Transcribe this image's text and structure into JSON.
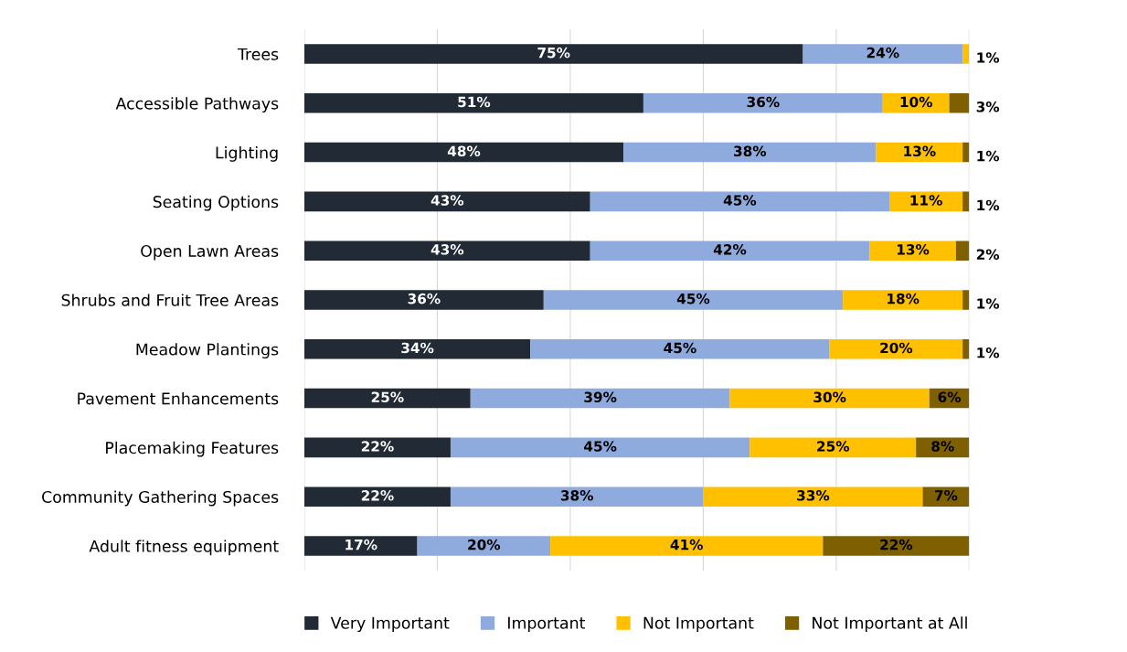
{
  "chart_data": {
    "type": "bar",
    "orientation": "horizontal",
    "stacked": true,
    "grid": "x",
    "legend": "bottom",
    "categories": [
      "Trees",
      "Accessible Pathways",
      "Lighting",
      "Seating Options",
      "Open Lawn Areas",
      "Shrubs and Fruit Tree Areas",
      "Meadow Plantings",
      "Pavement Enhancements",
      "Placemaking Features",
      "Community Gathering Spaces",
      "Adult fitness equipment"
    ],
    "series": [
      {
        "name": "Very Important",
        "color": "#222a35",
        "values": [
          75,
          51,
          48,
          43,
          43,
          36,
          34,
          25,
          22,
          22,
          17
        ],
        "value_labels": [
          "75%",
          "51%",
          "48%",
          "43%",
          "43%",
          "36%",
          "34%",
          "25%",
          "22%",
          "22%",
          "17%"
        ]
      },
      {
        "name": "Important",
        "color": "#8faadc",
        "values": [
          24,
          36,
          38,
          45,
          42,
          45,
          45,
          39,
          45,
          38,
          20
        ],
        "value_labels": [
          "24%",
          "36%",
          "38%",
          "45%",
          "42%",
          "45%",
          "45%",
          "39%",
          "45%",
          "38%",
          "20%"
        ]
      },
      {
        "name": "Not Important",
        "color": "#ffc000",
        "values": [
          1,
          10,
          13,
          11,
          13,
          18,
          20,
          30,
          25,
          33,
          41
        ],
        "value_labels": [
          "1%",
          "10%",
          "13%",
          "11%",
          "13%",
          "18%",
          "20%",
          "30%",
          "25%",
          "33%",
          "41%"
        ]
      },
      {
        "name": "Not Important at All",
        "color": "#7f6000",
        "values": [
          null,
          3,
          1,
          1,
          2,
          1,
          1,
          6,
          8,
          7,
          22
        ],
        "value_labels": [
          null,
          "3%",
          "1%",
          "1%",
          "2%",
          "1%",
          "1%",
          "6%",
          "8%",
          "7%",
          "22%"
        ]
      }
    ]
  }
}
